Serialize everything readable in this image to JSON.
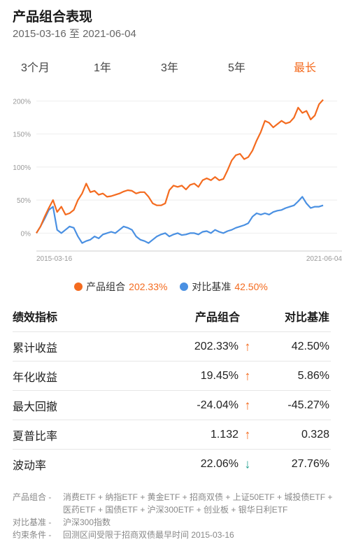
{
  "header": {
    "title": "产品组合表现",
    "date_range": "2015-03-16 至 2021-06-04"
  },
  "tabs": [
    {
      "label": "3个月",
      "active": false
    },
    {
      "label": "1年",
      "active": false
    },
    {
      "label": "3年",
      "active": false
    },
    {
      "label": "5年",
      "active": false
    },
    {
      "label": "最长",
      "active": true
    }
  ],
  "colors": {
    "accent": "#f46b1f",
    "portfolio": "#f46b1f",
    "benchmark": "#4a90e2",
    "down": "#1f9e8e"
  },
  "chart_data": {
    "type": "line",
    "x_start_label": "2015-03-16",
    "x_end_label": "2021-06-04",
    "y_ticks": [
      "0%",
      "50%",
      "100%",
      "150%",
      "200%"
    ],
    "ylim": [
      -25,
      210
    ],
    "grid": "horizontal",
    "series": [
      {
        "name": "产品组合",
        "color": "#f46b1f",
        "values": [
          0,
          10,
          25,
          38,
          50,
          32,
          40,
          28,
          30,
          35,
          50,
          60,
          75,
          62,
          64,
          58,
          60,
          55,
          56,
          58,
          60,
          63,
          65,
          64,
          60,
          62,
          62,
          55,
          45,
          42,
          42,
          45,
          65,
          72,
          70,
          72,
          66,
          73,
          75,
          70,
          80,
          83,
          80,
          85,
          80,
          82,
          95,
          110,
          118,
          120,
          112,
          115,
          125,
          140,
          153,
          170,
          167,
          160,
          165,
          170,
          166,
          168,
          175,
          190,
          182,
          185,
          172,
          178,
          195,
          202
        ]
      },
      {
        "name": "对比基准",
        "color": "#4a90e2",
        "values": [
          0,
          10,
          22,
          35,
          40,
          5,
          0,
          5,
          10,
          8,
          -5,
          -15,
          -12,
          -10,
          -5,
          -8,
          -2,
          0,
          2,
          0,
          5,
          10,
          8,
          5,
          -5,
          -10,
          -12,
          -15,
          -10,
          -5,
          -2,
          0,
          -5,
          -2,
          0,
          -3,
          -2,
          0,
          0,
          -2,
          2,
          3,
          0,
          5,
          2,
          0,
          3,
          5,
          8,
          10,
          12,
          15,
          25,
          30,
          28,
          30,
          28,
          32,
          34,
          35,
          38,
          40,
          42,
          48,
          55,
          45,
          38,
          40,
          40,
          42
        ]
      }
    ]
  },
  "legend": [
    {
      "name": "产品组合",
      "value": "202.33%",
      "color": "#f46b1f"
    },
    {
      "name": "对比基准",
      "value": "42.50%",
      "color": "#4a90e2"
    }
  ],
  "performance": {
    "headers": [
      "绩效指标",
      "产品组合",
      "对比基准"
    ],
    "rows": [
      {
        "metric": "累计收益",
        "portfolio": "202.33%",
        "arrow": "↑",
        "direction": "up",
        "benchmark": "42.50%"
      },
      {
        "metric": "年化收益",
        "portfolio": "19.45%",
        "arrow": "↑",
        "direction": "up",
        "benchmark": "5.86%"
      },
      {
        "metric": "最大回撤",
        "portfolio": "-24.04%",
        "arrow": "↑",
        "direction": "up",
        "benchmark": "-45.27%"
      },
      {
        "metric": "夏普比率",
        "portfolio": "1.132",
        "arrow": "↑",
        "direction": "up",
        "benchmark": "0.328"
      },
      {
        "metric": "波动率",
        "portfolio": "22.06%",
        "arrow": "↓",
        "direction": "down",
        "benchmark": "27.76%"
      }
    ]
  },
  "notes": [
    {
      "label": "产品组合 -",
      "value": "消费ETF + 纳指ETF + 黄金ETF + 招商双债 + 上证50ETF + 城投债ETF + 医药ETF + 国债ETF + 沪深300ETF + 创业板 + 银华日利ETF"
    },
    {
      "label": "对比基准 -",
      "value": "沪深300指数"
    },
    {
      "label": "约束条件 -",
      "value": "回测区间受限于招商双债最早时间 2015-03-16"
    }
  ]
}
